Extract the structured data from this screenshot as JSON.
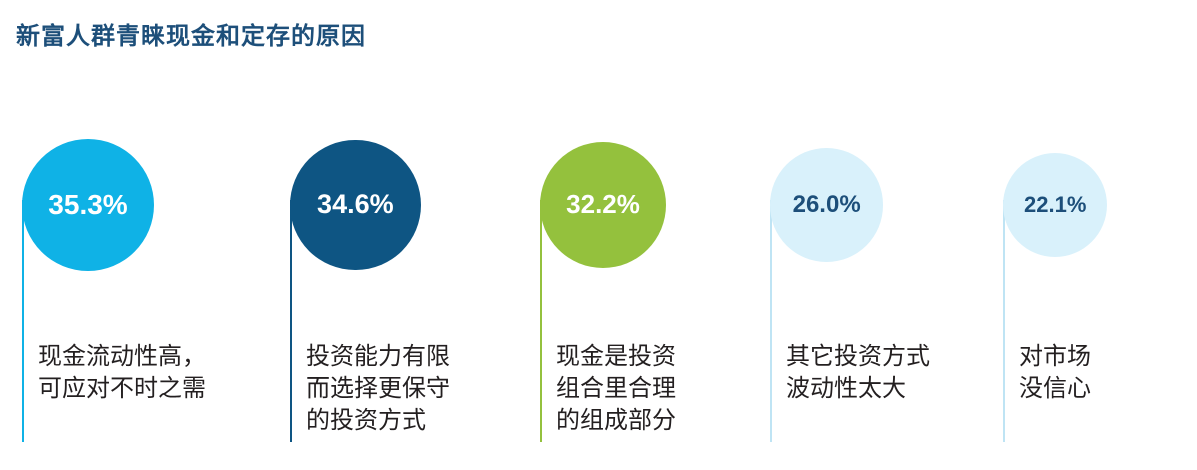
{
  "title": "新富人群青睐现金和定存的原因",
  "chart_data": {
    "type": "bubble",
    "unit": "%",
    "categories": [
      "现金流动性高，\n可应对不时之需",
      "投资能力有限\n而选择更保守\n的投资方式",
      "现金是投资\n组合里合理\n的组成部分",
      "其它投资方式\n波动性太大",
      "对市场\n没信心"
    ],
    "values": [
      35.3,
      34.6,
      32.2,
      26.0,
      22.1
    ],
    "value_labels": [
      "35.3%",
      "34.6%",
      "32.2%",
      "26.0%",
      "22.1%"
    ],
    "colors": [
      "#0fb2e6",
      "#0e5583",
      "#94c13d",
      "#d9f1fb",
      "#d9f1fb"
    ],
    "line_colors": [
      "#0fb2e6",
      "#0e5583",
      "#94c13d",
      "#bfe4f4",
      "#bfe4f4"
    ],
    "value_text_colors": [
      "#ffffff",
      "#ffffff",
      "#ffffff",
      "#1d4f7a",
      "#1d4f7a"
    ]
  }
}
